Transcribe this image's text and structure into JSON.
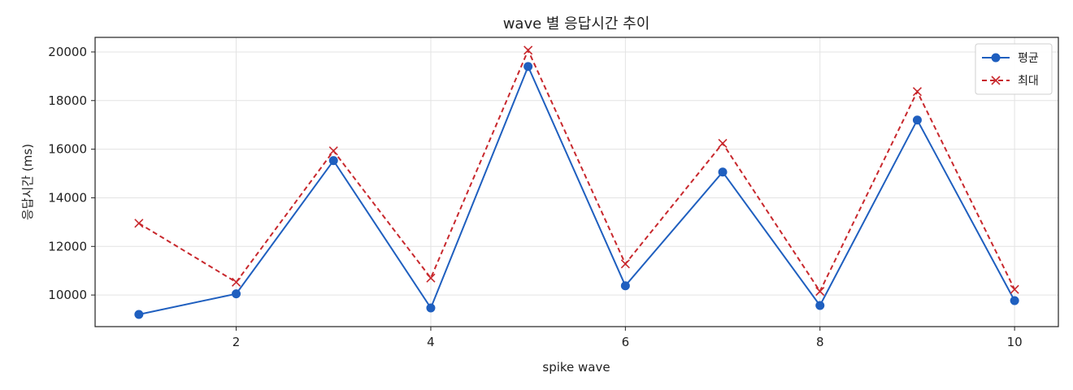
{
  "chart_data": {
    "type": "line",
    "title": "wave 별 응답시간 추이",
    "xlabel": "spike wave",
    "ylabel": "응답시간 (ms)",
    "x": [
      1,
      2,
      3,
      4,
      5,
      6,
      7,
      8,
      9,
      10
    ],
    "xlim": [
      0.55,
      10.45
    ],
    "ylim": [
      8700,
      20600
    ],
    "xticks": [
      2,
      4,
      6,
      8,
      10
    ],
    "yticks": [
      10000,
      12000,
      14000,
      16000,
      18000,
      20000
    ],
    "grid": true,
    "legend_position": "top-right",
    "series": [
      {
        "name": "평균",
        "values": [
          9200,
          10050,
          15530,
          9470,
          19400,
          10380,
          15060,
          9570,
          17200,
          9770
        ],
        "color": "#1f5fbf",
        "line_style": "solid",
        "marker": "circle"
      },
      {
        "name": "최대",
        "values": [
          12950,
          10530,
          15930,
          10700,
          20070,
          11280,
          16240,
          10150,
          18370,
          10230
        ],
        "color": "#c8282d",
        "line_style": "dashed",
        "marker": "x"
      }
    ]
  }
}
